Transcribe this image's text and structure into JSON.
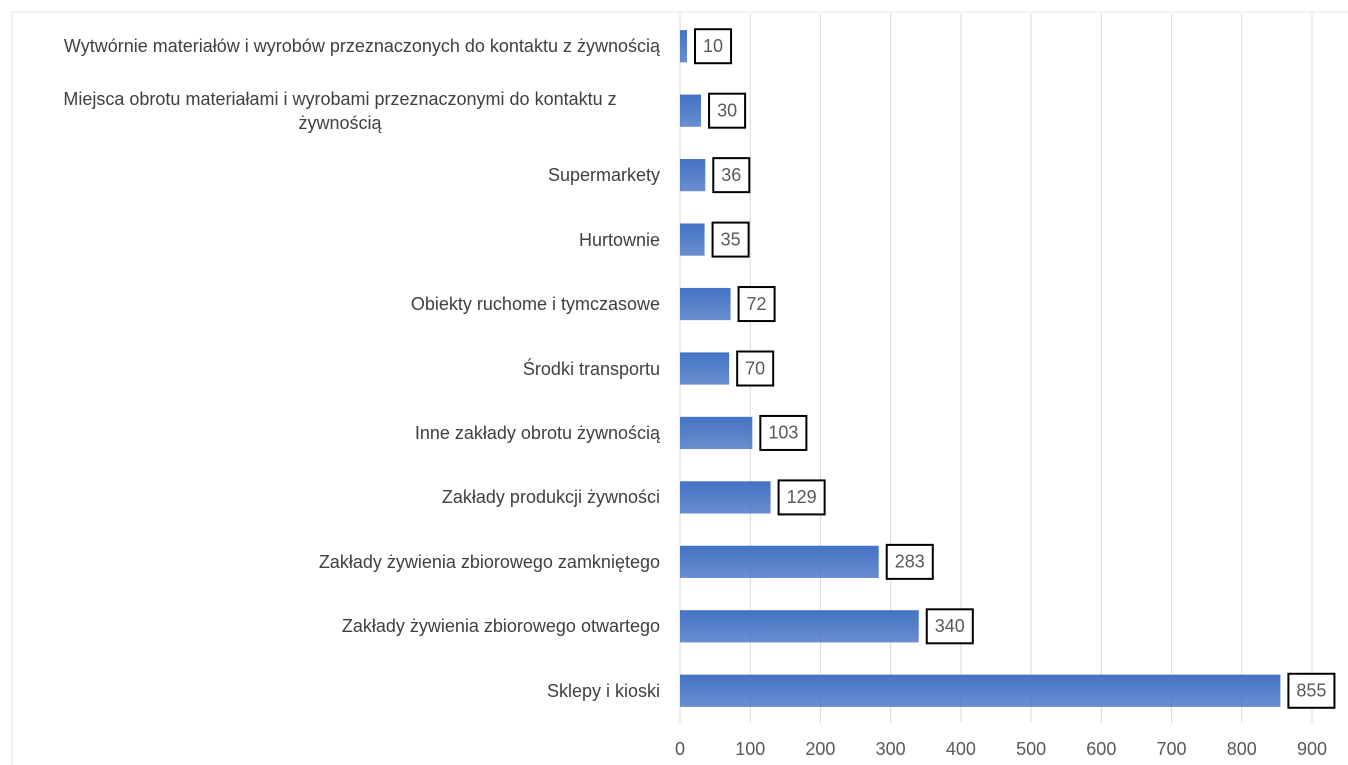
{
  "chart_data": {
    "type": "bar",
    "orientation": "horizontal",
    "categories": [
      "Wytwórnie materiałów i wyrobów przeznaczonych do kontaktu z żywnością",
      "Miejsca obrotu materiałami i wyrobami przeznaczonymi do kontaktu z żywnością",
      "Supermarkety",
      "Hurtownie",
      "Obiekty ruchome i tymczasowe",
      "Środki transportu",
      "Inne zakłady obrotu żywnością",
      "Zakłady produkcji żywności",
      "Zakłady żywienia zbiorowego zamkniętego",
      "Zakłady żywienia zbiorowego otwartego",
      "Sklepy i kioski"
    ],
    "values": [
      10,
      30,
      36,
      35,
      72,
      70,
      103,
      129,
      283,
      340,
      855
    ],
    "color": "#4472c4",
    "xlim": [
      0,
      900
    ],
    "xticks": [
      0,
      100,
      200,
      300,
      400,
      500,
      600,
      700,
      800,
      900
    ],
    "grid": true
  }
}
